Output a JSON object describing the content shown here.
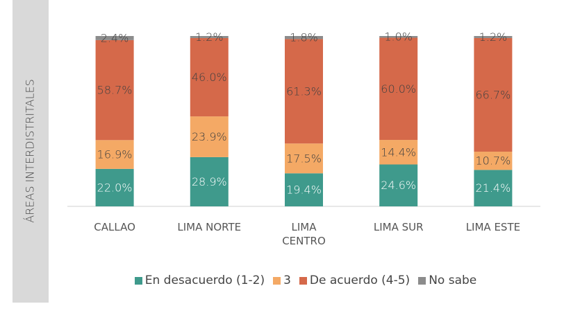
{
  "chart_data": {
    "type": "bar",
    "stacked": true,
    "y_label": "ÁREAS INTERDISTRITALES",
    "categories": [
      "CALLAO",
      "LIMA NORTE",
      "LIMA CENTRO",
      "LIMA SUR",
      "LIMA ESTE"
    ],
    "series": [
      {
        "name": "En desacuerdo (1-2)",
        "color": "#3f9a8c",
        "values": [
          22.0,
          28.9,
          19.4,
          24.6,
          21.4
        ],
        "value_labels": [
          "22.0%",
          "28.9%",
          "19.4%",
          "24.6%",
          "21.4%"
        ]
      },
      {
        "name": "3",
        "color": "#f4a965",
        "values": [
          16.9,
          23.9,
          17.5,
          14.4,
          10.7
        ],
        "value_labels": [
          "16.9%",
          "23.9%",
          "17.5%",
          "14.4%",
          "10.7%"
        ]
      },
      {
        "name": "De acuerdo (4-5)",
        "color": "#d5694a",
        "values": [
          58.7,
          46.0,
          61.3,
          60.0,
          66.7
        ],
        "value_labels": [
          "58.7%",
          "46.0%",
          "61.3%",
          "60.0%",
          "66.7%"
        ]
      },
      {
        "name": "No sabe",
        "color": "#8c8c8c",
        "values": [
          2.4,
          1.2,
          1.8,
          1.0,
          1.2
        ],
        "value_labels": [
          "2.4%",
          "1.2%",
          "1.8%",
          "1.0%",
          "1.2%"
        ]
      }
    ]
  }
}
